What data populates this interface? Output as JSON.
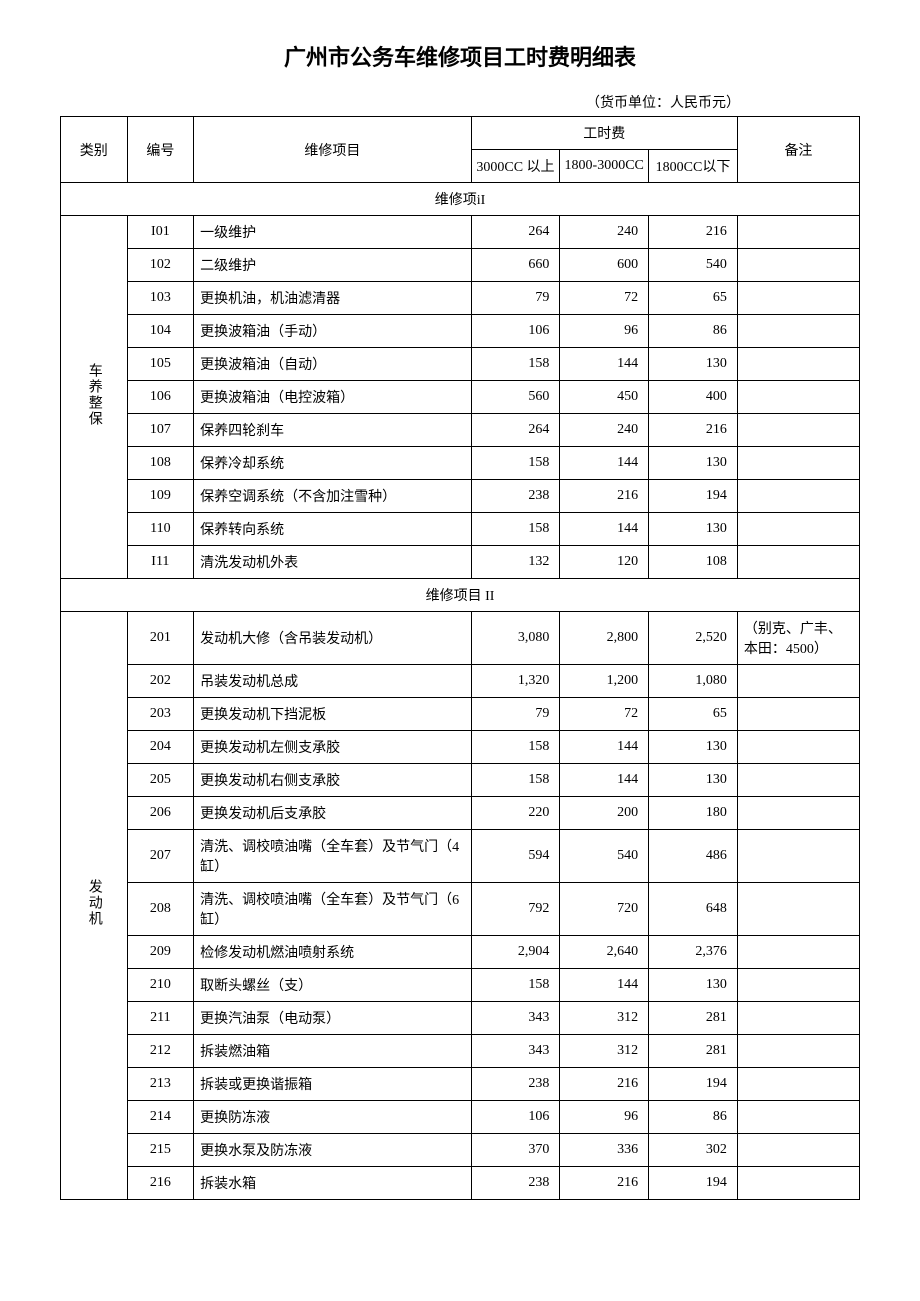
{
  "title": "广州市公务车维修项目工时费明细表",
  "currency_unit": "（货币单位：人民币元）",
  "headers": {
    "category": "类别",
    "id": "编号",
    "item": "维修项目",
    "fee_group": "工时费",
    "fee_a": "3000CC 以上",
    "fee_b": "1800-3000CC",
    "fee_c": "1800CC以下",
    "note": "备注"
  },
  "sections": [
    {
      "section_title": "维修项iI",
      "category_label": "车养整保",
      "rows": [
        {
          "id": "I01",
          "name": "一级维护",
          "a": "264",
          "b": "240",
          "c": "216",
          "note": ""
        },
        {
          "id": "102",
          "name": "二级维护",
          "a": "660",
          "b": "600",
          "c": "540",
          "note": ""
        },
        {
          "id": "103",
          "name": "更换机油，机油滤清器",
          "a": "79",
          "b": "72",
          "c": "65",
          "note": ""
        },
        {
          "id": "104",
          "name": "更换波箱油（手动）",
          "a": "106",
          "b": "96",
          "c": "86",
          "note": ""
        },
        {
          "id": "105",
          "name": "更换波箱油（自动）",
          "a": "158",
          "b": "144",
          "c": "130",
          "note": ""
        },
        {
          "id": "106",
          "name": "更换波箱油（电控波箱）",
          "a": "560",
          "b": "450",
          "c": "400",
          "note": ""
        },
        {
          "id": "107",
          "name": "保养四轮刹车",
          "a": "264",
          "b": "240",
          "c": "216",
          "note": ""
        },
        {
          "id": "108",
          "name": "保养冷却系统",
          "a": "158",
          "b": "144",
          "c": "130",
          "note": ""
        },
        {
          "id": "109",
          "name": "保养空调系统（不含加注雪种）",
          "a": "238",
          "b": "216",
          "c": "194",
          "note": ""
        },
        {
          "id": "110",
          "name": "保养转向系统",
          "a": "158",
          "b": "144",
          "c": "130",
          "note": ""
        },
        {
          "id": "I11",
          "name": "清洗发动机外表",
          "a": "132",
          "b": "120",
          "c": "108",
          "note": ""
        }
      ]
    },
    {
      "section_title": "维修项目 II",
      "category_label": "发动机",
      "rows": [
        {
          "id": "201",
          "name": "发动机大修（含吊装发动机）",
          "a": "3,080",
          "b": "2,800",
          "c": "2,520",
          "note": "（别克、广丰、本田：4500）"
        },
        {
          "id": "202",
          "name": "吊装发动机总成",
          "a": "1,320",
          "b": "1,200",
          "c": "1,080",
          "note": ""
        },
        {
          "id": "203",
          "name": "更换发动机下挡泥板",
          "a": "79",
          "b": "72",
          "c": "65",
          "note": ""
        },
        {
          "id": "204",
          "name": "更换发动机左侧支承胶",
          "a": "158",
          "b": "144",
          "c": "130",
          "note": ""
        },
        {
          "id": "205",
          "name": "更换发动机右侧支承胶",
          "a": "158",
          "b": "144",
          "c": "130",
          "note": ""
        },
        {
          "id": "206",
          "name": "更换发动机后支承胶",
          "a": "220",
          "b": "200",
          "c": "180",
          "note": ""
        },
        {
          "id": "207",
          "name": "清洗、调校喷油嘴（全车套）及节气门（4 缸）",
          "a": "594",
          "b": "540",
          "c": "486",
          "note": ""
        },
        {
          "id": "208",
          "name": "清洗、调校喷油嘴（全车套）及节气门（6 缸）",
          "a": "792",
          "b": "720",
          "c": "648",
          "note": ""
        },
        {
          "id": "209",
          "name": "检修发动机燃油喷射系统",
          "a": "2,904",
          "b": "2,640",
          "c": "2,376",
          "note": ""
        },
        {
          "id": "210",
          "name": "取断头螺丝（支）",
          "a": "158",
          "b": "144",
          "c": "130",
          "note": ""
        },
        {
          "id": "211",
          "name": "更换汽油泵（电动泵）",
          "a": "343",
          "b": "312",
          "c": "281",
          "note": ""
        },
        {
          "id": "212",
          "name": "拆装燃油箱",
          "a": "343",
          "b": "312",
          "c": "281",
          "note": ""
        },
        {
          "id": "213",
          "name": "拆装或更换谐振箱",
          "a": "238",
          "b": "216",
          "c": "194",
          "note": ""
        },
        {
          "id": "214",
          "name": "更换防冻液",
          "a": "106",
          "b": "96",
          "c": "86",
          "note": ""
        },
        {
          "id": "215",
          "name": "更换水泵及防冻液",
          "a": "370",
          "b": "336",
          "c": "302",
          "note": ""
        },
        {
          "id": "216",
          "name": "拆装水箱",
          "a": "238",
          "b": "216",
          "c": "194",
          "note": ""
        }
      ]
    }
  ]
}
